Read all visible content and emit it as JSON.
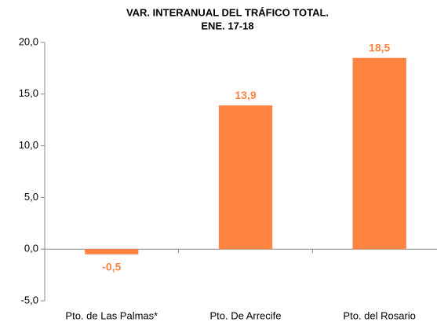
{
  "chart_data": {
    "type": "bar",
    "title": "VAR. INTERANUAL DEL TRÁFICO TOTAL.",
    "subtitle": "ENE. 17-18",
    "categories": [
      "Pto. de Las Palmas*",
      "Pto. De Arrecife",
      "Pto. del Rosario"
    ],
    "values": [
      -0.5,
      13.9,
      18.5
    ],
    "value_labels": [
      "-0,5",
      "13,9",
      "18,5"
    ],
    "color": "#ff8442",
    "ylim": [
      -5,
      20
    ],
    "yticks": [
      {
        "value": -5,
        "label": "-5,0"
      },
      {
        "value": 0,
        "label": "0,0"
      },
      {
        "value": 5,
        "label": "5,0"
      },
      {
        "value": 10,
        "label": "10,0"
      },
      {
        "value": 15,
        "label": "15,0"
      },
      {
        "value": 20,
        "label": "20,0"
      }
    ],
    "grid": false
  }
}
